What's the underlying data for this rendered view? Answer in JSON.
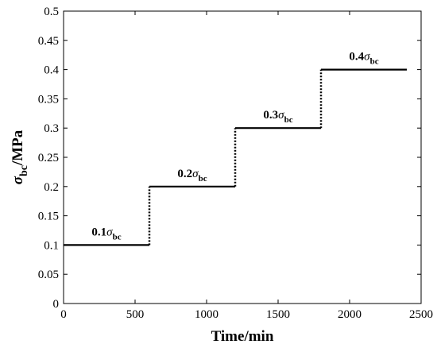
{
  "chart_data": {
    "type": "line",
    "xlabel": "Time/min",
    "ylabel": {
      "symbol": "σ",
      "subscript": "bc",
      "suffix": "/MPa"
    },
    "xlim": [
      0,
      2500
    ],
    "ylim": [
      0,
      0.5
    ],
    "xticks": [
      "0",
      "500",
      "1000",
      "1500",
      "2000",
      "2500"
    ],
    "yticks": [
      "0",
      "0.05",
      "0.1",
      "0.15",
      "0.2",
      "0.25",
      "0.3",
      "0.35",
      "0.4",
      "0.45",
      "0.5"
    ],
    "grid": false,
    "series": [
      {
        "x": [
          0,
          600,
          1200,
          1800,
          2400
        ],
        "y": [
          0.1,
          0.2,
          0.3,
          0.4,
          0.4
        ],
        "style": "step"
      }
    ],
    "step_line_color": "#000000",
    "annotations": [
      {
        "prefix": "0.1",
        "symbol": "σ",
        "subscript": "bc",
        "x": 300,
        "y": 0.1
      },
      {
        "prefix": "0.2",
        "symbol": "σ",
        "subscript": "bc",
        "x": 900,
        "y": 0.2
      },
      {
        "prefix": "0.3",
        "symbol": "σ",
        "subscript": "bc",
        "x": 1500,
        "y": 0.3
      },
      {
        "prefix": "0.4",
        "symbol": "σ",
        "subscript": "bc",
        "x": 2100,
        "y": 0.4
      }
    ]
  }
}
